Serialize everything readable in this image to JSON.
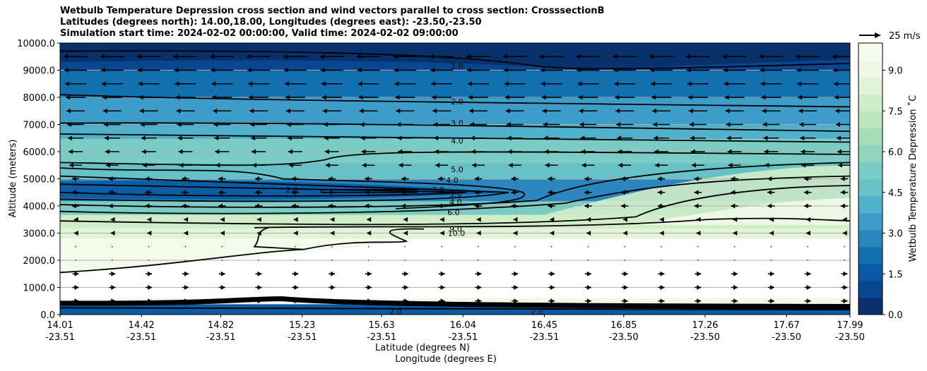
{
  "chart_data": {
    "type": "contour",
    "title_lines": [
      "Wetbulb Temperature Depression cross section and wind vectors parallel to cross section: CrosssectionB",
      "Latitudes (degrees north): 14.00,18.00, Longitudes (degrees east): -23.50,-23.50",
      "Simulation start time: 2024-02-02 00:00:00, Valid time: 2024-02-02 09:00:00"
    ],
    "xlabel_lines": [
      "Latitude (degrees N)",
      "Longitude (degrees E)"
    ],
    "ylabel": "Altitude (meters)",
    "ylim": [
      0,
      10000
    ],
    "xlim": [
      14.01,
      17.99
    ],
    "y_ticks": [
      "0.0",
      "1000.0",
      "2000.0",
      "3000.0",
      "4000.0",
      "5000.0",
      "6000.0",
      "7000.0",
      "8000.0",
      "9000.0",
      "10000.0"
    ],
    "x_ticks": [
      {
        "lat": "14.01",
        "lon": "-23.51"
      },
      {
        "lat": "14.42",
        "lon": "-23.51"
      },
      {
        "lat": "14.82",
        "lon": "-23.51"
      },
      {
        "lat": "15.23",
        "lon": "-23.51"
      },
      {
        "lat": "15.63",
        "lon": "-23.51"
      },
      {
        "lat": "16.04",
        "lon": "-23.51"
      },
      {
        "lat": "16.45",
        "lon": "-23.51"
      },
      {
        "lat": "16.85",
        "lon": "-23.50"
      },
      {
        "lat": "17.26",
        "lon": "-23.50"
      },
      {
        "lat": "17.67",
        "lon": "-23.50"
      },
      {
        "lat": "17.99",
        "lon": "-23.50"
      }
    ],
    "grid": "horizontal",
    "colorbar": {
      "label": "Wetbulb Temperature Depression ˚C",
      "range": [
        0,
        10
      ],
      "ticks": [
        "0.0",
        "1.5",
        "3.0",
        "4.5",
        "6.0",
        "7.5",
        "9.0"
      ],
      "colors": [
        "#08306b",
        "#08468f",
        "#0a5ba3",
        "#1070b0",
        "#2a86bd",
        "#3e9cc8",
        "#52b1ca",
        "#66c2c6",
        "#7bccc4",
        "#8fd4bd",
        "#a6dcb6",
        "#bde5bc",
        "#d0edc9",
        "#e2f4d8",
        "#f0f9e8",
        "#f7fcf0"
      ]
    },
    "quiver_key": "25 m/s",
    "contour_labels": [
      "1.0",
      "2.0",
      "3.0",
      "4.0",
      "5.0",
      "4.0",
      "3.0",
      "2.0",
      "3.0",
      "4.0",
      "6.0",
      "9.0",
      "10.0",
      "2.0",
      "2.0"
    ]
  }
}
